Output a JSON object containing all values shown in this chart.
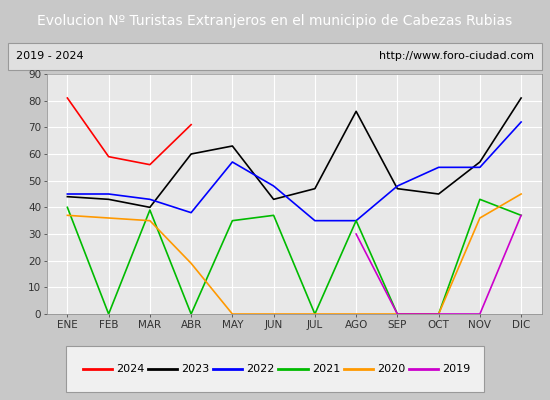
{
  "title": "Evolucion Nº Turistas Extranjeros en el municipio de Cabezas Rubias",
  "subtitle_left": "2019 - 2024",
  "subtitle_right": "http://www.foro-ciudad.com",
  "months": [
    "ENE",
    "FEB",
    "MAR",
    "ABR",
    "MAY",
    "JUN",
    "JUL",
    "AGO",
    "SEP",
    "OCT",
    "NOV",
    "DIC"
  ],
  "ylim": [
    0,
    90
  ],
  "yticks": [
    0,
    10,
    20,
    30,
    40,
    50,
    60,
    70,
    80,
    90
  ],
  "series": {
    "2024": {
      "color": "#ff0000",
      "data": [
        81,
        59,
        56,
        71,
        null,
        null,
        null,
        null,
        null,
        null,
        null,
        null
      ]
    },
    "2023": {
      "color": "#000000",
      "data": [
        44,
        43,
        40,
        60,
        63,
        43,
        47,
        76,
        47,
        45,
        57,
        81
      ]
    },
    "2022": {
      "color": "#0000ff",
      "data": [
        45,
        45,
        43,
        38,
        57,
        48,
        35,
        35,
        48,
        55,
        55,
        72
      ]
    },
    "2021": {
      "color": "#00bb00",
      "data": [
        40,
        0,
        39,
        0,
        35,
        37,
        0,
        35,
        0,
        0,
        43,
        37
      ]
    },
    "2020": {
      "color": "#ff9900",
      "data": [
        37,
        36,
        35,
        19,
        0,
        0,
        0,
        0,
        0,
        0,
        36,
        45
      ]
    },
    "2019": {
      "color": "#cc00cc",
      "data": [
        null,
        null,
        null,
        null,
        null,
        null,
        null,
        30,
        0,
        0,
        0,
        37
      ]
    }
  },
  "title_bg_color": "#4f81bd",
  "title_font_color": "#ffffff",
  "subtitle_bg_color": "#e0e0e0",
  "plot_bg_color": "#e8e8e8",
  "grid_color": "#ffffff",
  "outer_bg_color": "#c8c8c8",
  "title_fontsize": 10,
  "subtitle_fontsize": 8,
  "tick_fontsize": 7.5,
  "legend_fontsize": 8
}
